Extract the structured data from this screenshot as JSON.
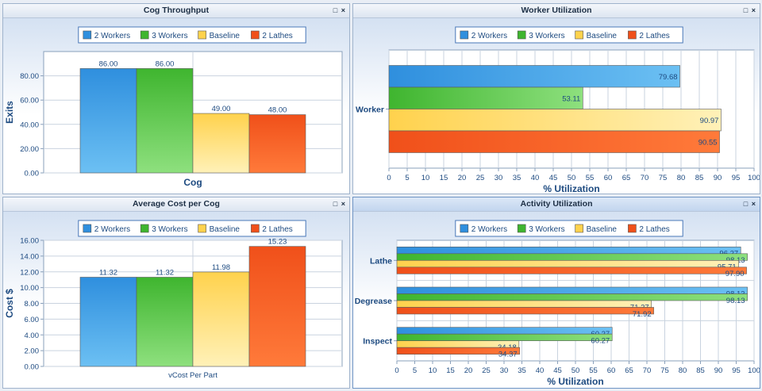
{
  "colors": {
    "w2": "#2f8fde",
    "w3": "#3fb52f",
    "base": "#ffd24d",
    "lathes": "#f0501a",
    "title_text": "#1d4a80"
  },
  "panel_buttons": {
    "restore": "□",
    "close": "×"
  },
  "legend": [
    "2 Workers",
    "3 Workers",
    "Baseline",
    "2 Lathes"
  ],
  "chart_data": [
    {
      "type": "bar",
      "title": "Cog Throughput",
      "xlabel": "Cog",
      "ylabel": "Exits",
      "categories": [
        "Cog"
      ],
      "series": [
        {
          "name": "2 Workers",
          "values": [
            86.0
          ]
        },
        {
          "name": "3 Workers",
          "values": [
            86.0
          ]
        },
        {
          "name": "Baseline",
          "values": [
            49.0
          ]
        },
        {
          "name": "2 Lathes",
          "values": [
            48.0
          ]
        }
      ],
      "value_labels": [
        "86.00",
        "86.00",
        "49.00",
        "48.00"
      ],
      "yticks": [
        "0.00",
        "20.00",
        "40.00",
        "60.00",
        "80.00"
      ],
      "ylim": [
        0,
        100
      ],
      "legend_position": "top-center",
      "grid": true
    },
    {
      "type": "bar",
      "orientation": "horizontal",
      "title": "Worker Utilization",
      "xlabel": "% Utilization",
      "ylabel": "",
      "categories": [
        "Worker"
      ],
      "series": [
        {
          "name": "2 Workers",
          "values": [
            79.68
          ]
        },
        {
          "name": "3 Workers",
          "values": [
            53.11
          ]
        },
        {
          "name": "Baseline",
          "values": [
            90.97
          ]
        },
        {
          "name": "2 Lathes",
          "values": [
            90.55
          ]
        }
      ],
      "value_labels": [
        "79.68",
        "53.11",
        "90.97",
        "90.55"
      ],
      "xticks": [
        "0",
        "5",
        "10",
        "15",
        "20",
        "25",
        "30",
        "35",
        "40",
        "45",
        "50",
        "55",
        "60",
        "65",
        "70",
        "75",
        "80",
        "85",
        "90",
        "95",
        "100"
      ],
      "xlim": [
        0,
        100
      ],
      "legend_position": "top-center",
      "grid": true
    },
    {
      "type": "bar",
      "title": "Average Cost per Cog",
      "xlabel": "vCost Per Part",
      "ylabel": "Cost $",
      "categories": [
        "vCost Per Part"
      ],
      "series": [
        {
          "name": "2 Workers",
          "values": [
            11.32
          ]
        },
        {
          "name": "3 Workers",
          "values": [
            11.32
          ]
        },
        {
          "name": "Baseline",
          "values": [
            11.98
          ]
        },
        {
          "name": "2 Lathes",
          "values": [
            15.23
          ]
        }
      ],
      "value_labels": [
        "11.32",
        "11.32",
        "11.98",
        "15.23"
      ],
      "yticks": [
        "0.00",
        "2.00",
        "4.00",
        "6.00",
        "8.00",
        "10.00",
        "12.00",
        "14.00",
        "16.00"
      ],
      "ylim": [
        0,
        16
      ],
      "legend_position": "top-center",
      "grid": true
    },
    {
      "type": "bar",
      "orientation": "horizontal",
      "title": "Activity Utilization",
      "xlabel": "% Utilization",
      "ylabel": "",
      "categories": [
        "Lathe",
        "Degrease",
        "Inspect"
      ],
      "series": [
        {
          "name": "2 Workers",
          "values": [
            96.27,
            98.13,
            60.27
          ]
        },
        {
          "name": "3 Workers",
          "values": [
            98.13,
            98.13,
            60.27
          ]
        },
        {
          "name": "Baseline",
          "values": [
            95.71,
            71.27,
            34.18
          ]
        },
        {
          "name": "2 Lathes",
          "values": [
            97.9,
            71.92,
            34.37
          ]
        }
      ],
      "value_labels": [
        [
          "96.27",
          "98.13",
          "60.27"
        ],
        [
          "98.13",
          "98.13",
          "60.27"
        ],
        [
          "95.71",
          "71.27",
          "34.18"
        ],
        [
          "97.90",
          "71.92",
          "34.37"
        ]
      ],
      "xticks": [
        "0",
        "5",
        "10",
        "15",
        "20",
        "25",
        "30",
        "35",
        "40",
        "45",
        "50",
        "55",
        "60",
        "65",
        "70",
        "75",
        "80",
        "85",
        "90",
        "95",
        "100"
      ],
      "xlim": [
        0,
        100
      ],
      "legend_position": "top-center",
      "grid": true
    }
  ]
}
